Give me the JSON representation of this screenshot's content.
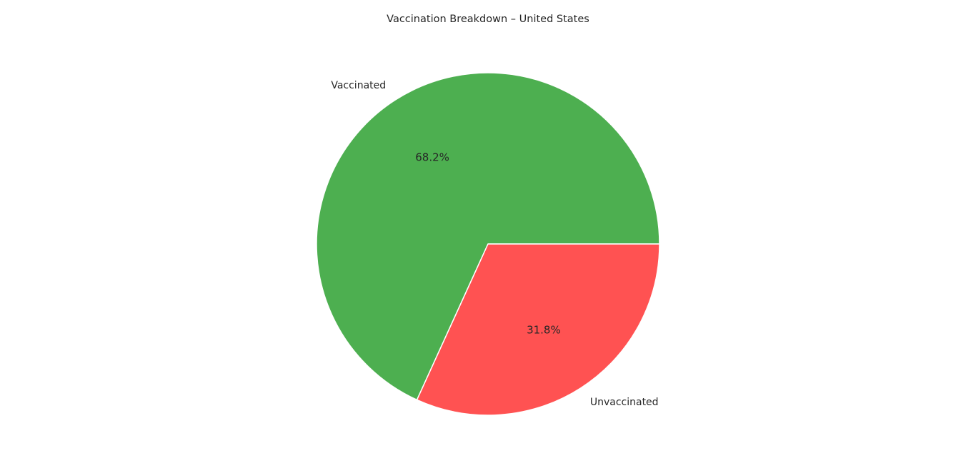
{
  "chart_data": {
    "type": "pie",
    "title": "Vaccination Breakdown – United States",
    "categories": [
      "Vaccinated",
      "Unvaccinated"
    ],
    "values": [
      68.2,
      31.8
    ],
    "value_labels": [
      "68.2%",
      "31.8%"
    ],
    "colors": [
      "#4daf50",
      "#ff5252"
    ],
    "edge_color": "#ffffff",
    "start": "east",
    "direction": "counterclockwise",
    "legend": "none"
  }
}
